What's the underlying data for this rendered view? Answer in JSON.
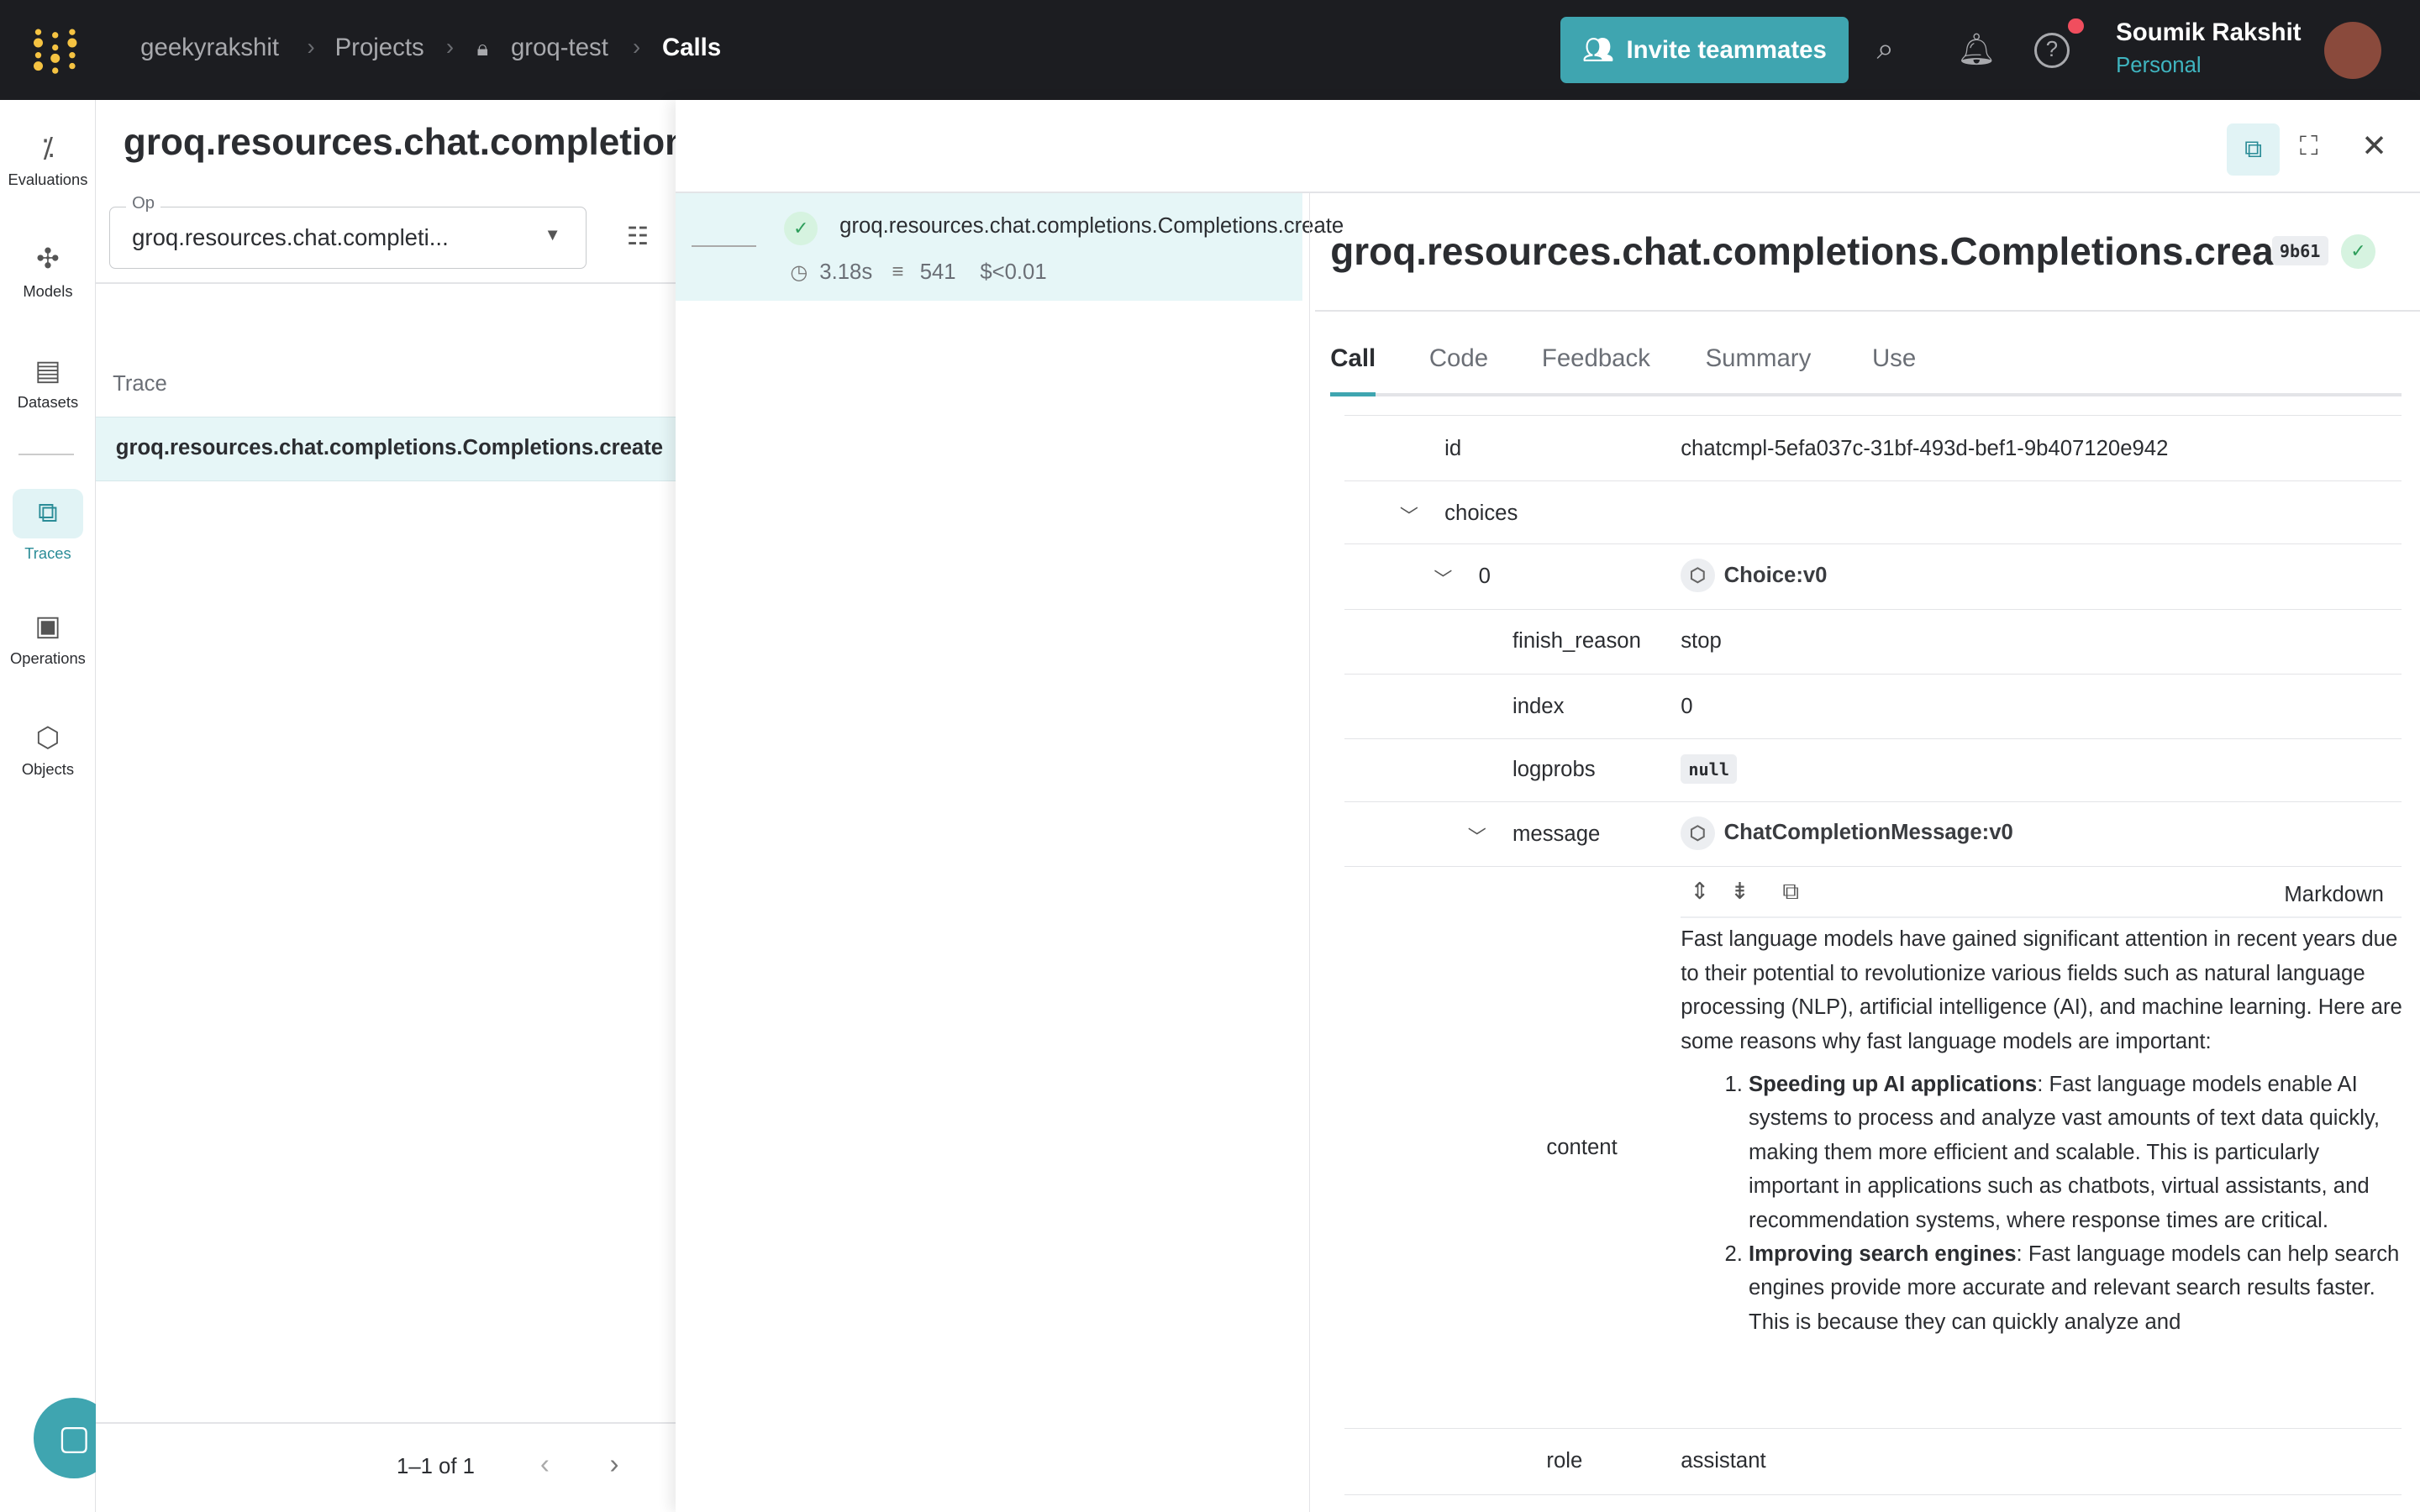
{
  "topbar": {
    "breadcrumbs": [
      "geekyrakshit",
      "Projects",
      "groq-test",
      "Calls"
    ],
    "invite_label": "Invite teammates",
    "user_name": "Soumik Rakshit",
    "user_plan": "Personal"
  },
  "nav": [
    {
      "label": "Evaluations",
      "icon": "wand-icon"
    },
    {
      "label": "Models",
      "icon": "model-icon"
    },
    {
      "label": "Datasets",
      "icon": "table-icon"
    },
    {
      "label": "Traces",
      "icon": "traces-icon",
      "active": true
    },
    {
      "label": "Operations",
      "icon": "terminal-icon"
    },
    {
      "label": "Objects",
      "icon": "cube-icon"
    }
  ],
  "list": {
    "title": "groq.resources.chat.completions.Completions.create",
    "op_label": "Op",
    "op_value": "groq.resources.chat.completi...",
    "column": "Trace",
    "rows": [
      "groq.resources.chat.completions.Completions.create"
    ],
    "pagination": "1–1 of 1"
  },
  "tree": {
    "name": "groq.resources.chat.completions.Completions.create",
    "latency": "3.18s",
    "tokens": "541",
    "cost": "$<0.01"
  },
  "detail": {
    "title": "groq.resources.chat.completions.Completions.create",
    "version": "9b61",
    "tabs": [
      "Call",
      "Code",
      "Feedback",
      "Summary",
      "Use"
    ],
    "rows": {
      "id_key": "id",
      "id_val": "chatcmpl-5efa037c-31bf-493d-bef1-9b407120e942",
      "choices": "choices",
      "idx0": "0",
      "choice_obj": "Choice:v0",
      "finish_reason_key": "finish_reason",
      "finish_reason_val": "stop",
      "index_key": "index",
      "index_val": "0",
      "logprobs_key": "logprobs",
      "logprobs_val": "null",
      "message_key": "message",
      "message_obj": "ChatCompletionMessage:v0",
      "content_key": "content",
      "format": "Markdown",
      "role_key": "role",
      "role_val": "assistant"
    },
    "content": {
      "intro": "Fast language models have gained significant attention in recent years due to their potential to revolutionize various fields such as natural language processing (NLP), artificial intelligence (AI), and machine learning. Here are some reasons why fast language models are important:",
      "items": [
        {
          "bold": "Speeding up AI applications",
          "text": ": Fast language models enable AI systems to process and analyze vast amounts of text data quickly, making them more efficient and scalable. This is particularly important in applications such as chatbots, virtual assistants, and recommendation systems, where response times are critical."
        },
        {
          "bold": "Improving search engines",
          "text": ": Fast language models can help search engines provide more accurate and relevant search results faster. This is because they can quickly analyze and"
        }
      ]
    }
  },
  "colors": {
    "accent": "#3fa5b0",
    "topbar": "#1c1d21",
    "selected_row": "#e6f6f7",
    "success": "#2e9e5b"
  }
}
